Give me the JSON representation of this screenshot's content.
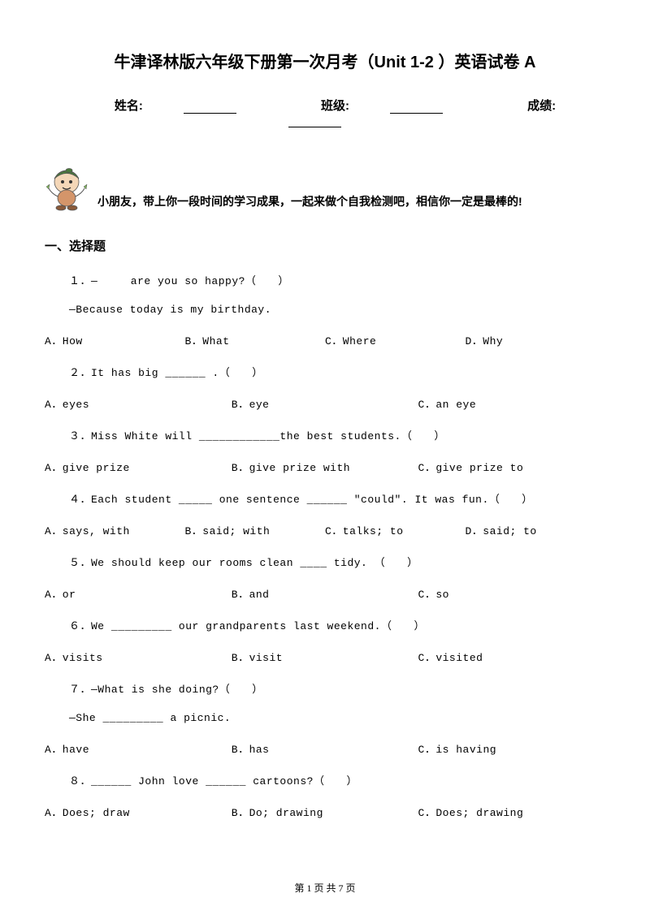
{
  "title": "牛津译林版六年级下册第一次月考（Unit 1-2 ）英语试卷 A",
  "info": {
    "name_label": "姓名:",
    "class_label": "班级:",
    "score_label": "成绩:"
  },
  "encourage": "小朋友，带上你一段时间的学习成果，一起来做个自我检测吧，相信你一定是最棒的!",
  "section1": "一、选择题",
  "questions": [
    {
      "num": "１．",
      "text": "—　　　are you so happy?（　　）",
      "sub": "—Because today is my birthday.",
      "opts": [
        "A．How",
        "B．What",
        "C．Where",
        "D．Why"
      ],
      "cols": 4
    },
    {
      "num": "２．",
      "text": "It has big ______ .（　　）",
      "opts": [
        "A．eyes",
        "B．eye",
        "C．an eye"
      ],
      "cols": 3
    },
    {
      "num": "３．",
      "text": "Miss White will ____________the best students.（　　）",
      "opts": [
        "A．give prize",
        "B．give prize with",
        "C．give prize to"
      ],
      "cols": 3
    },
    {
      "num": "４．",
      "text": "Each student _____ one sentence ______ \"could\". It was fun.（　　）",
      "opts": [
        "A．says, with",
        "B．said; with",
        "C．talks; to",
        "D．said; to"
      ],
      "cols": 4
    },
    {
      "num": "５．",
      "text": "We should keep our rooms clean ____ tidy. （　　）",
      "opts": [
        "A．or",
        "B．and",
        "C．so"
      ],
      "cols": 3
    },
    {
      "num": "６．",
      "text": "We _________ our grandparents last weekend.（　　）",
      "opts": [
        "A．visits",
        "B．visit",
        "C．visited"
      ],
      "cols": 3
    },
    {
      "num": "７．",
      "text": "—What is she doing?（　　）",
      "sub": "—She _________ a picnic.",
      "opts": [
        "A．have",
        "B．has",
        "C．is having"
      ],
      "cols": 3
    },
    {
      "num": "８．",
      "text": "______ John love ______ cartoons?（　　）",
      "opts": [
        "A．Does; draw",
        "B．Do; drawing",
        "C．Does; drawing"
      ],
      "cols": 3
    }
  ],
  "footer": "第 1 页 共 7 页"
}
